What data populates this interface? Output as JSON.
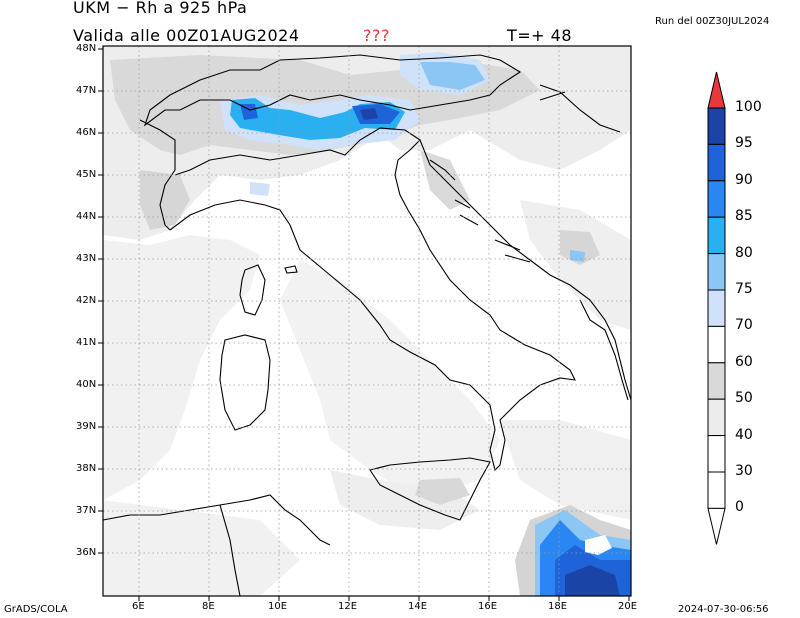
{
  "header": {
    "title": "UKM − Rh a 925 hPa",
    "valid": "Valida alle 00Z01AUG2024",
    "flag": "???",
    "step": "T=+ 48",
    "run": "Run del 00Z30JUL2024"
  },
  "footer": {
    "credit": "GrADS/COLA",
    "timestamp": "2024-07-30-06:56"
  },
  "map": {
    "lat_ticks": [
      "48N",
      "47N",
      "46N",
      "45N",
      "44N",
      "43N",
      "42N",
      "41N",
      "40N",
      "39N",
      "38N",
      "37N",
      "36N"
    ],
    "lon_ticks": [
      "6E",
      "8E",
      "10E",
      "12E",
      "14E",
      "16E",
      "18E",
      "20E"
    ]
  },
  "legend": {
    "levels": [
      "100",
      "95",
      "90",
      "85",
      "80",
      "75",
      "70",
      "60",
      "50",
      "40",
      "30",
      "0"
    ],
    "colors": [
      "#1a44a8",
      "#1f63d8",
      "#2a86f2",
      "#2ab0f0",
      "#8cc6f5",
      "#cfe2fa",
      "#ffffff",
      "#d9d9d9",
      "#ececec",
      "#ffffff",
      "#ffffff",
      "#ffffff"
    ],
    "arrow_color": "#e8383a"
  }
}
